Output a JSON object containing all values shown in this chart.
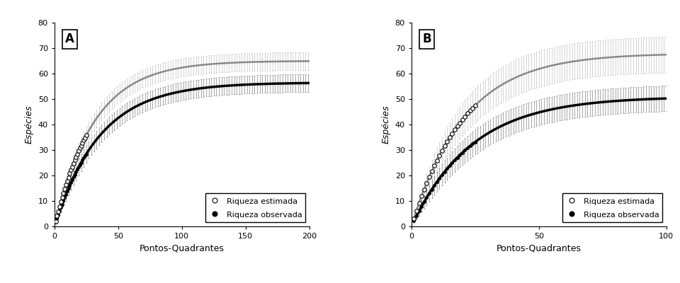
{
  "panel_A": {
    "label": "A",
    "x_max": 200,
    "x_ticks": [
      0,
      50,
      100,
      150,
      200
    ],
    "y_min": 0,
    "y_max": 80,
    "y_ticks": [
      0,
      10,
      20,
      30,
      40,
      50,
      60,
      70,
      80
    ],
    "xlabel": "Pontos-Quadrantes",
    "ylabel": "Espécies",
    "n_points": 200,
    "obs_final": 56.5,
    "obs_b": 0.028,
    "est_final": 65.0,
    "est_b": 0.032,
    "obs_sd_max": 3.5,
    "est_sd_max": 3.5
  },
  "panel_B": {
    "label": "B",
    "x_max": 100,
    "x_ticks": [
      0,
      50,
      100
    ],
    "y_min": 0,
    "y_max": 80,
    "y_ticks": [
      0,
      10,
      20,
      30,
      40,
      50,
      60,
      70,
      80
    ],
    "xlabel": "Pontos-Quadrantes",
    "ylabel": "Espécies",
    "n_points": 100,
    "obs_final": 51.0,
    "obs_b": 0.042,
    "est_final": 68.0,
    "est_b": 0.048,
    "obs_sd_max": 5.0,
    "est_sd_max": 7.0
  },
  "legend_estimated": "Riqueza estimada",
  "legend_observed": "Riqueza observada",
  "title_fontsize": 12,
  "axis_fontsize": 9,
  "tick_fontsize": 8,
  "legend_fontsize": 8,
  "background_color": "#ffffff"
}
